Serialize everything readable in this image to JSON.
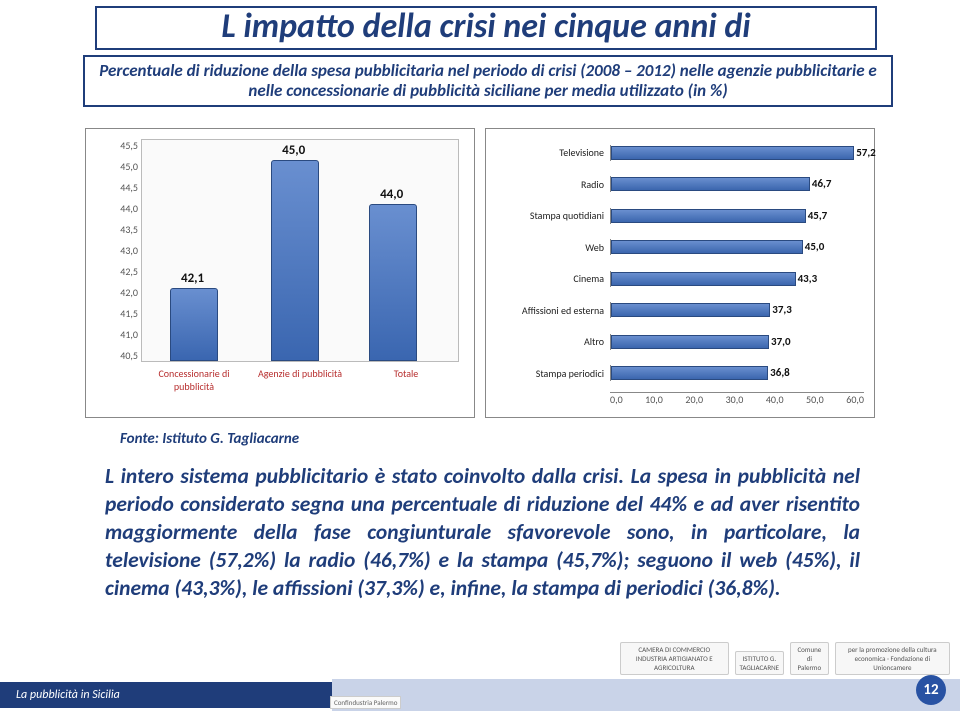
{
  "title": "L impatto della crisi nei cinque anni di",
  "subtitle": "Percentuale di riduzione della spesa pubblicitaria nel periodo di crisi (2008 – 2012) nelle agenzie pubblicitarie e nelle concessionarie di pubblicità siciliane per media utilizzato (in %)",
  "bar_chart": {
    "type": "bar",
    "ylim": [
      40.5,
      45.5
    ],
    "ytick_step": 0.5,
    "yticks": [
      "45,5",
      "45,0",
      "44,5",
      "44,0",
      "43,5",
      "43,0",
      "42,5",
      "42,0",
      "41,5",
      "41,0",
      "40,5"
    ],
    "categories": [
      "Concessionarie di pubblicità",
      "Agenzie di pubblicità",
      "Totale"
    ],
    "values": [
      42.1,
      45.0,
      44.0
    ],
    "value_labels": [
      "42,1",
      "45,0",
      "44,0"
    ],
    "bar_color": "#4a72bc",
    "bar_border": "#2a4a80",
    "background": "#ffffff",
    "plot_bg": "#fafafa",
    "cat_color": "#b83030",
    "label_fontsize": 10,
    "value_fontsize": 13
  },
  "hbar_chart": {
    "type": "hbar",
    "xlim": [
      0,
      60
    ],
    "xtick_step": 10,
    "xticks": [
      "0,0",
      "10,0",
      "20,0",
      "30,0",
      "40,0",
      "50,0",
      "60,0"
    ],
    "categories": [
      "Televisione",
      "Radio",
      "Stampa quotidiani",
      "Web",
      "Cinema",
      "Affissioni ed esterna",
      "Altro",
      "Stampa periodici"
    ],
    "values": [
      57.2,
      46.7,
      45.7,
      45.0,
      43.3,
      37.3,
      37.0,
      36.8
    ],
    "value_labels": [
      "57,2",
      "46,7",
      "45,7",
      "45,0",
      "43,3",
      "37,3",
      "37,0",
      "36,8"
    ],
    "bar_color": "#4a72bc",
    "bar_border": "#2a4a80",
    "background": "#ffffff",
    "label_fontsize": 10,
    "value_fontsize": 11
  },
  "fonte": "Fonte: Istituto G. Tagliacarne",
  "body": "L intero sistema pubblicitario è stato coinvolto dalla crisi. La spesa in pubblicità nel periodo considerato segna una percentuale di riduzione del 44% e ad aver risentito maggiormente della fase congiunturale sfavorevole sono, in particolare, la televisione (57,2%) la radio (46,7%) e la stampa (45,7%); seguono il web (45%), il cinema (43,3%), le affissioni (37,3%) e, infine, la stampa di periodici (36,8%).",
  "footer_label": "La pubblicità in Sicilia",
  "page_num": "12",
  "logos": {
    "l1": "CAMERA DI COMMERCIO INDUSTRIA ARTIGIANATO E AGRICOLTURA",
    "l2": "ISTITUTO G. TAGLIACARNE",
    "l3": "Comune di Palermo",
    "l4": "per la promozione della cultura economica · Fondazione di Unioncamere",
    "confind": "Confindustria Palermo"
  },
  "colors": {
    "brand_blue": "#1f3d7a",
    "page_circle": "#2852a3",
    "footer_band": "#c9d3e8"
  }
}
